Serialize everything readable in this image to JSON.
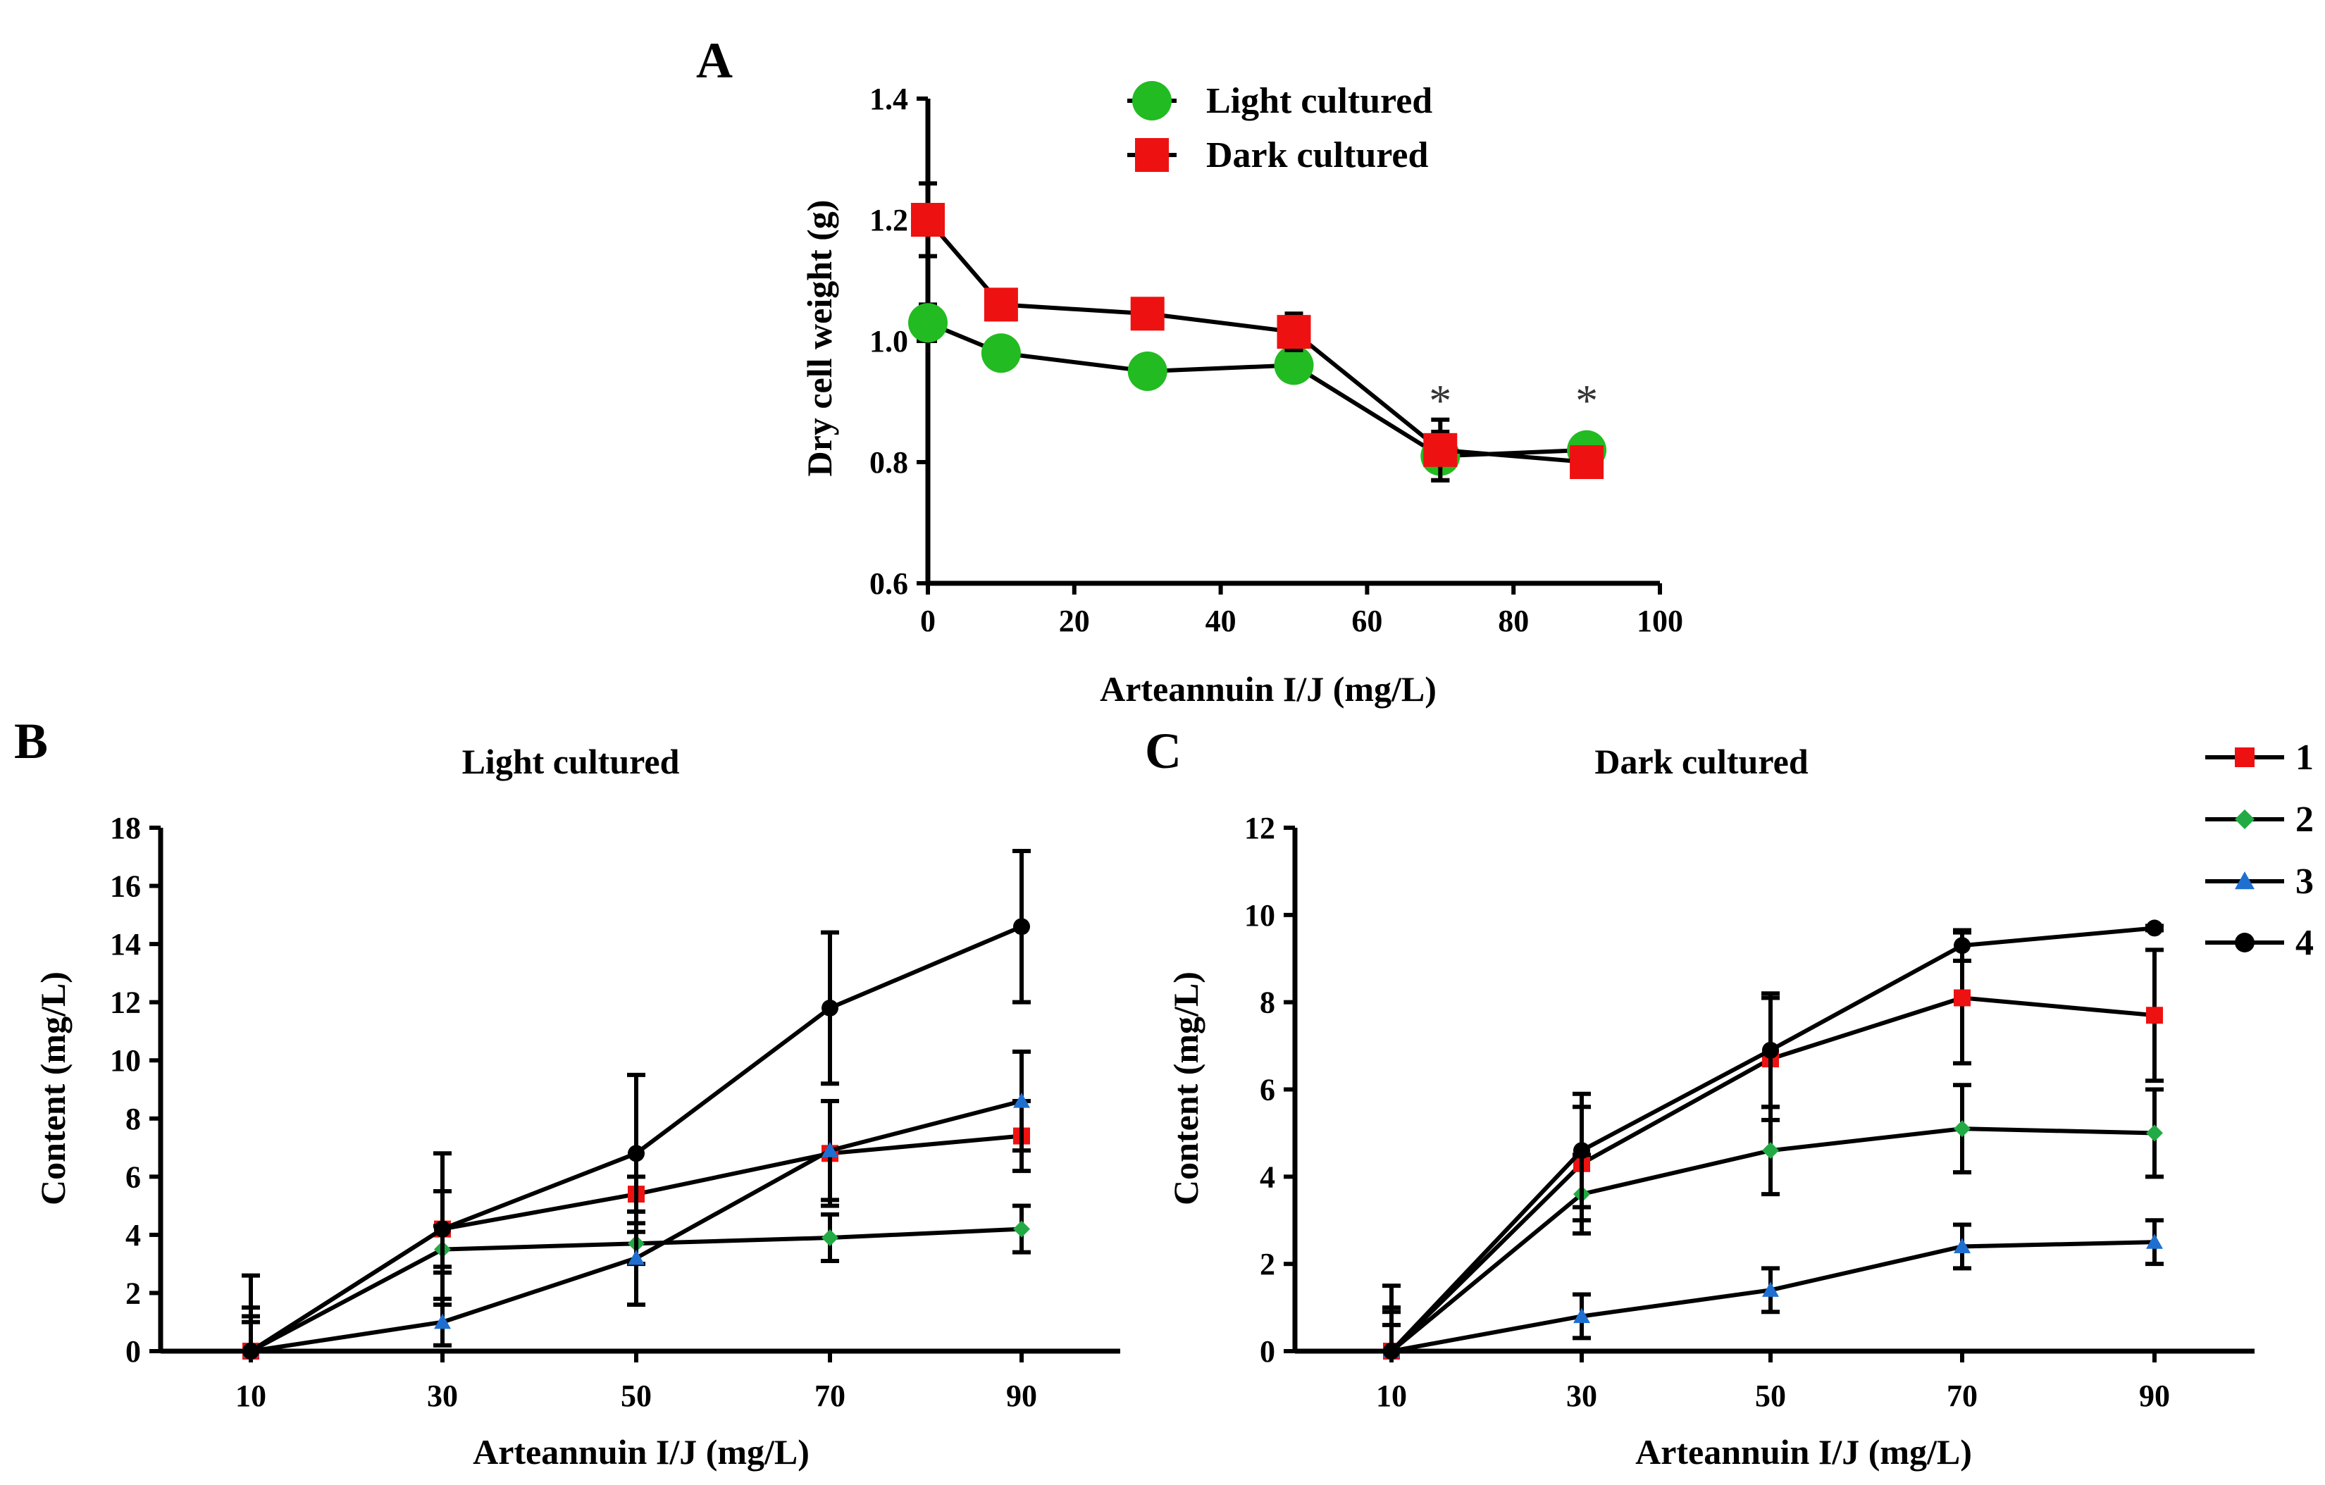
{
  "chart_data": [
    {
      "panel": "A",
      "type": "line",
      "title": "",
      "xlabel": "Arteannuin I/J (mg/L)",
      "ylabel": "Dry cell weight (g)",
      "xlim": [
        0,
        100
      ],
      "ylim": [
        0.6,
        1.4
      ],
      "xticks": [
        "0",
        "20",
        "40",
        "60",
        "80",
        "100"
      ],
      "yticks": [
        "0.6",
        "0.8",
        "1.0",
        "1.2",
        "1.4"
      ],
      "legend_position": "top-right",
      "x": [
        0,
        10,
        30,
        50,
        70,
        90
      ],
      "series": [
        {
          "name": "Light cultured",
          "color": "#22bb22",
          "marker": "circle",
          "values": [
            1.03,
            0.98,
            0.95,
            0.96,
            0.81,
            0.82
          ],
          "errors": [
            0.03,
            0.025,
            0.01,
            0.02,
            0.04,
            0.01
          ]
        },
        {
          "name": "Dark cultured",
          "color": "#ee1111",
          "marker": "square",
          "values": [
            1.2,
            1.06,
            1.045,
            1.015,
            0.82,
            0.8
          ],
          "errors": [
            0.06,
            0.02,
            0.02,
            0.03,
            0.05,
            0.015
          ]
        }
      ],
      "annotations": [
        {
          "x": 70,
          "y": 0.9,
          "text": "*"
        },
        {
          "x": 90,
          "y": 0.9,
          "text": "*"
        }
      ]
    },
    {
      "panel": "B",
      "type": "line",
      "title": "Light cultured",
      "xlabel": "Arteannuin I/J (mg/L)",
      "ylabel": "Content (mg/L)",
      "ylim": [
        0,
        18
      ],
      "categories": [
        "10",
        "30",
        "50",
        "70",
        "90"
      ],
      "yticks": [
        "0",
        "2",
        "4",
        "6",
        "8",
        "10",
        "12",
        "14",
        "16",
        "18"
      ],
      "series": [
        {
          "name": "1",
          "color": "#ee1111",
          "marker": "square",
          "values": [
            0,
            4.2,
            5.4,
            6.8,
            7.4
          ],
          "errors": [
            1.5,
            1.3,
            0.6,
            1.8,
            1.2
          ]
        },
        {
          "name": "2",
          "color": "#22aa44",
          "marker": "diamond",
          "values": [
            0,
            3.5,
            3.7,
            3.9,
            4.2
          ],
          "errors": [
            1.2,
            0.8,
            0.7,
            0.8,
            0.8
          ]
        },
        {
          "name": "3",
          "color": "#1f6fd0",
          "marker": "triangle",
          "values": [
            0,
            1.0,
            3.2,
            6.9,
            8.6
          ],
          "errors": [
            1.0,
            0.8,
            1.6,
            1.7,
            1.7
          ]
        },
        {
          "name": "4",
          "color": "#000000",
          "marker": "circle",
          "values": [
            0,
            4.2,
            6.8,
            11.8,
            14.6
          ],
          "errors": [
            2.6,
            2.6,
            2.7,
            2.6,
            2.6
          ]
        }
      ]
    },
    {
      "panel": "C",
      "type": "line",
      "title": "Dark cultured",
      "xlabel": "Arteannuin I/J (mg/L)",
      "ylabel": "Content (mg/L)",
      "ylim": [
        0,
        12
      ],
      "categories": [
        "10",
        "30",
        "50",
        "70",
        "90"
      ],
      "yticks": [
        "0",
        "2",
        "4",
        "6",
        "8",
        "10",
        "12"
      ],
      "legend_position": "right",
      "series": [
        {
          "name": "1",
          "color": "#ee1111",
          "marker": "square",
          "values": [
            0,
            4.3,
            6.7,
            8.1,
            7.7
          ],
          "errors": [
            1.0,
            1.3,
            1.4,
            1.5,
            1.5
          ]
        },
        {
          "name": "2",
          "color": "#22aa44",
          "marker": "diamond",
          "values": [
            0,
            3.6,
            4.6,
            5.1,
            5.0
          ],
          "errors": [
            0.9,
            0.9,
            1.0,
            1.0,
            1.0
          ]
        },
        {
          "name": "3",
          "color": "#1f6fd0",
          "marker": "triangle",
          "values": [
            0,
            0.8,
            1.4,
            2.4,
            2.5
          ],
          "errors": [
            0.6,
            0.5,
            0.5,
            0.5,
            0.5
          ]
        },
        {
          "name": "4",
          "color": "#000000",
          "marker": "circle",
          "values": [
            0,
            4.6,
            6.9,
            9.3,
            9.7
          ],
          "errors": [
            1.5,
            1.3,
            1.3,
            0.35,
            0.05
          ]
        }
      ]
    }
  ]
}
